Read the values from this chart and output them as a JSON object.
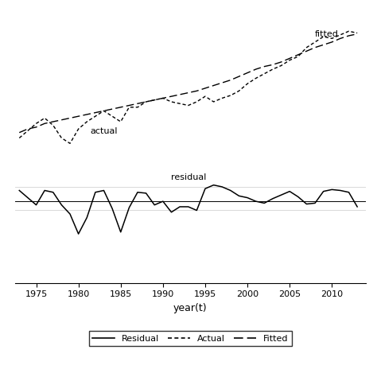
{
  "years": [
    1973,
    1974,
    1975,
    1976,
    1977,
    1978,
    1979,
    1980,
    1981,
    1982,
    1983,
    1984,
    1985,
    1986,
    1987,
    1988,
    1989,
    1990,
    1991,
    1992,
    1993,
    1994,
    1995,
    1996,
    1997,
    1998,
    1999,
    2000,
    2001,
    2002,
    2003,
    2004,
    2005,
    2006,
    2007,
    2008,
    2009,
    2010,
    2011,
    2012,
    2013
  ],
  "fitted": [
    3.8,
    4.0,
    4.1,
    4.3,
    4.4,
    4.5,
    4.6,
    4.7,
    4.8,
    4.9,
    5.0,
    5.1,
    5.2,
    5.3,
    5.4,
    5.5,
    5.6,
    5.7,
    5.8,
    5.9,
    6.0,
    6.1,
    6.25,
    6.4,
    6.55,
    6.7,
    6.9,
    7.1,
    7.3,
    7.45,
    7.55,
    7.7,
    7.9,
    8.1,
    8.3,
    8.5,
    8.65,
    8.8,
    9.0,
    9.15,
    9.25
  ],
  "actual": [
    3.5,
    3.9,
    4.3,
    4.6,
    4.2,
    3.5,
    3.2,
    4.0,
    4.4,
    4.7,
    5.0,
    4.7,
    4.4,
    5.2,
    5.2,
    5.5,
    5.6,
    5.7,
    5.5,
    5.4,
    5.3,
    5.5,
    5.8,
    5.5,
    5.7,
    5.85,
    6.1,
    6.5,
    6.8,
    7.05,
    7.3,
    7.5,
    7.8,
    8.0,
    8.5,
    8.8,
    9.1,
    9.0,
    9.2,
    9.4,
    9.3
  ],
  "residual": [
    0.6,
    0.2,
    -0.2,
    0.6,
    0.5,
    -0.2,
    -0.7,
    -1.8,
    -0.9,
    0.5,
    0.6,
    -0.4,
    -1.7,
    -0.35,
    0.5,
    0.45,
    -0.2,
    0.0,
    -0.6,
    -0.3,
    -0.3,
    -0.5,
    0.7,
    0.9,
    0.8,
    0.6,
    0.3,
    0.2,
    0.0,
    -0.1,
    0.15,
    0.35,
    0.55,
    0.25,
    -0.15,
    -0.1,
    0.55,
    0.65,
    0.6,
    0.5,
    -0.3
  ],
  "xlabel": "year(t)",
  "xticks": [
    1975,
    1980,
    1985,
    1990,
    1995,
    2000,
    2005,
    2010
  ],
  "xlim_lo": 1972.5,
  "xlim_hi": 2014,
  "ylim_lo": -4.5,
  "ylim_hi": 10.5,
  "hline_zero": 0.0,
  "hline_upper": 0.8,
  "hline_lower": -0.5,
  "ann_actual_x": 1983,
  "ann_actual_y": 4.1,
  "ann_fitted_x": 2008,
  "ann_fitted_y": 9.0,
  "ann_residual_x": 1993,
  "ann_residual_y": 1.1
}
